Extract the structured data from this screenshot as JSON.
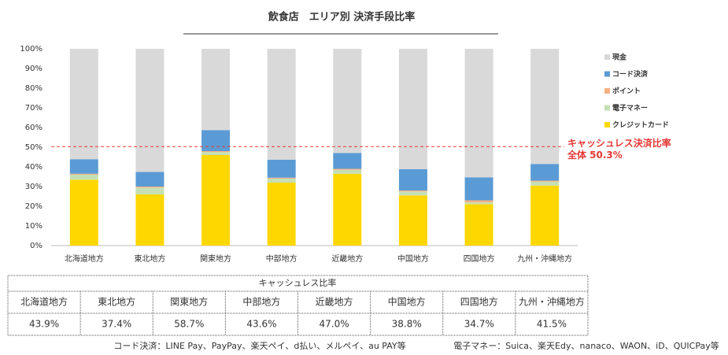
{
  "chart_data": {
    "type": "stacked_bar",
    "title": "飲食店　エリア別 決済手段比率",
    "categories": [
      "北海道地方",
      "東北地方",
      "関東地方",
      "中部地方",
      "近畿地方",
      "中国地方",
      "四国地方",
      "九州・沖縄地方"
    ],
    "series": [
      {
        "name": "クレジットカード",
        "color": "#ffd700",
        "values": [
          33.5,
          26,
          46,
          32,
          36.5,
          25.5,
          21,
          30.5
        ]
      },
      {
        "name": "電子マネー",
        "color": "#c5e0b4",
        "values": [
          2.5,
          3.5,
          1.5,
          2,
          2,
          2,
          1,
          2
        ]
      },
      {
        "name": "ポイント",
        "color": "#f4b183",
        "values": [
          0.5,
          0.5,
          0.5,
          0.5,
          0.5,
          0.5,
          1,
          0.5
        ]
      },
      {
        "name": "コード決済",
        "color": "#5b9bd5",
        "values": [
          7.4,
          7.4,
          10.7,
          9.1,
          8,
          10.8,
          11.7,
          8.5
        ]
      },
      {
        "name": "現金",
        "color": "#d9d9d9",
        "values": [
          56.1,
          62.6,
          41.3,
          56.4,
          53,
          61.2,
          65.3,
          58.5
        ]
      }
    ],
    "ylim": [
      0,
      100
    ],
    "yticks": [
      {
        "value": 0,
        "label": "0%"
      },
      {
        "value": 10,
        "label": "10%"
      },
      {
        "value": 20,
        "label": "20%"
      },
      {
        "value": 30,
        "label": "30%"
      },
      {
        "value": 40,
        "label": "40%"
      },
      {
        "value": 50,
        "label": "50%"
      },
      {
        "value": 60,
        "label": "60%"
      },
      {
        "value": 70,
        "label": "70%"
      },
      {
        "value": 80,
        "label": "80%"
      },
      {
        "value": 90,
        "label": "90%"
      },
      {
        "value": 100,
        "label": "100%"
      }
    ],
    "reference_line": {
      "value": 50.3,
      "color": "#e53935",
      "label": "キャッシュレス決済比率",
      "value_label": "全体 50.3%"
    },
    "legend": "right"
  },
  "table": {
    "title": "キャッシュレス比率",
    "values": [
      "43.9%",
      "37.4%",
      "58.7%",
      "43.6%",
      "47.0%",
      "38.8%",
      "34.7%",
      "41.5%"
    ]
  },
  "footnotes": [
    "コード決済：LINE Pay、PayPay、楽天ペイ、d払い、メルペイ、au PAY等",
    "電子マネー：Suica、楽天Edy、nanaco、WAON、iD、QUICPay等"
  ]
}
